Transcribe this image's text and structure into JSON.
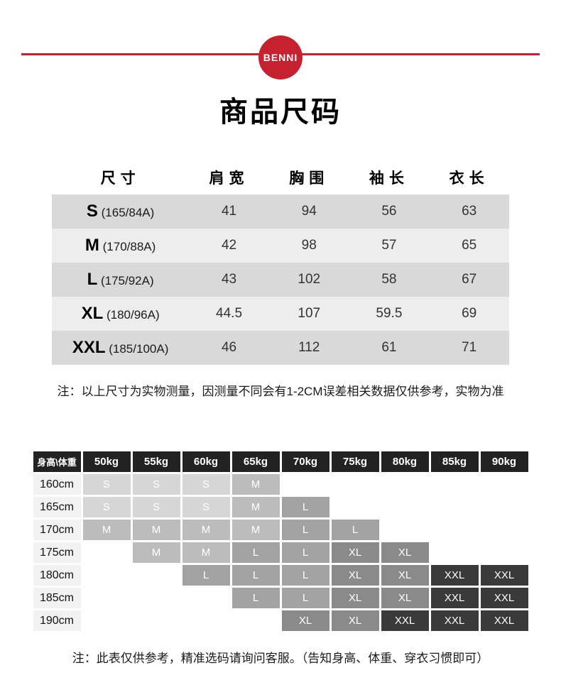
{
  "brand": {
    "logo_text": "BENNI",
    "accent_color": "#c5212f"
  },
  "title": "商品尺码",
  "size_table": {
    "headers": [
      "尺寸",
      "肩宽",
      "胸围",
      "袖长",
      "衣长"
    ],
    "rows": [
      {
        "size": "S",
        "spec": "(165/84A)",
        "shoulder": "41",
        "chest": "94",
        "sleeve": "56",
        "length": "63"
      },
      {
        "size": "M",
        "spec": "(170/88A)",
        "shoulder": "42",
        "chest": "98",
        "sleeve": "57",
        "length": "65"
      },
      {
        "size": "L",
        "spec": "(175/92A)",
        "shoulder": "43",
        "chest": "102",
        "sleeve": "58",
        "length": "67"
      },
      {
        "size": "XL",
        "spec": "(180/96A)",
        "shoulder": "44.5",
        "chest": "107",
        "sleeve": "59.5",
        "length": "69"
      },
      {
        "size": "XXL",
        "spec": "(185/100A)",
        "shoulder": "46",
        "chest": "112",
        "sleeve": "61",
        "length": "71"
      }
    ],
    "row_band_colors": [
      "#d9d9d9",
      "#ededed"
    ],
    "note": "注：以上尺寸为实物测量，因测量不同会有1-2CM误差相关数据仅供参考，实物为准"
  },
  "matrix": {
    "corner_label": "身高\\体重",
    "col_headers": [
      "50kg",
      "55kg",
      "60kg",
      "65kg",
      "70kg",
      "75kg",
      "80kg",
      "85kg",
      "90kg"
    ],
    "row_headers": [
      "160cm",
      "165cm",
      "170cm",
      "175cm",
      "180cm",
      "185cm",
      "190cm"
    ],
    "cells": [
      [
        "S",
        "S",
        "S",
        "M",
        "",
        "",
        "",
        "",
        ""
      ],
      [
        "S",
        "S",
        "S",
        "M",
        "L",
        "",
        "",
        "",
        ""
      ],
      [
        "M",
        "M",
        "M",
        "M",
        "L",
        "L",
        "",
        "",
        ""
      ],
      [
        "",
        "M",
        "M",
        "L",
        "L",
        "XL",
        "XL",
        "",
        ""
      ],
      [
        "",
        "",
        "L",
        "L",
        "L",
        "XL",
        "XL",
        "XXL",
        "XXL"
      ],
      [
        "",
        "",
        "",
        "L",
        "L",
        "XL",
        "XL",
        "XXL",
        "XXL"
      ],
      [
        "",
        "",
        "",
        "",
        "XL",
        "XL",
        "XXL",
        "XXL",
        "XXL"
      ]
    ],
    "size_shade_colors": {
      "S": "#d6d6d6",
      "M": "#bcbcbc",
      "L": "#a2a2a2",
      "XL": "#8a8a8a",
      "XXL": "#3a3a3a"
    },
    "header_bg_color": "#222222",
    "note": "注：此表仅供参考，精准选码请询问客服。（告知身高、体重、穿衣习惯即可）"
  }
}
